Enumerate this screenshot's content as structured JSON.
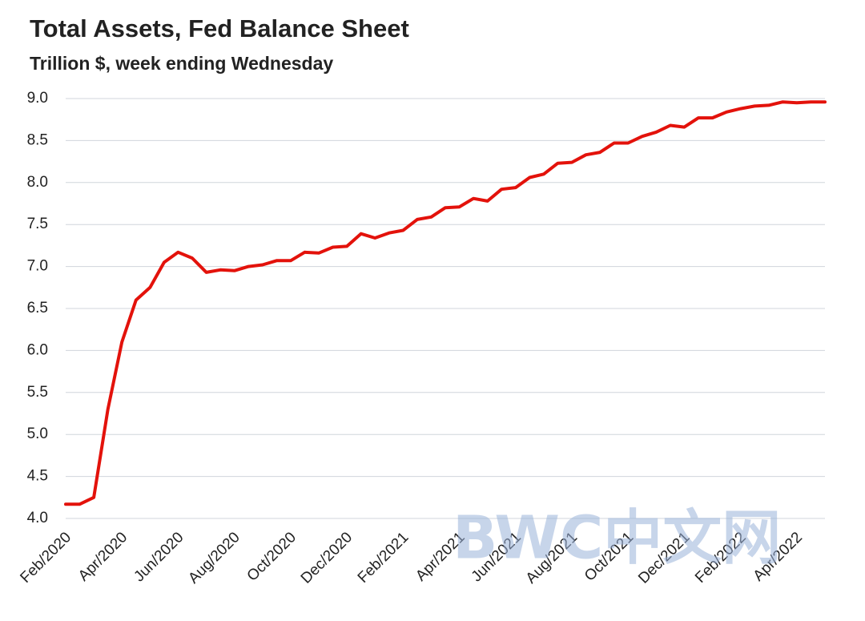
{
  "chart_data": {
    "type": "line",
    "title": "Total Assets, Fed Balance Sheet",
    "subtitle": "Trillion $, week ending Wednesday",
    "watermark": "BWC中文网",
    "categories": [
      "Feb/2020",
      null,
      null,
      null,
      "Apr/2020",
      null,
      null,
      null,
      "Jun/2020",
      null,
      null,
      null,
      "Aug/2020",
      null,
      null,
      null,
      "Oct/2020",
      null,
      null,
      null,
      "Dec/2020",
      null,
      null,
      null,
      "Feb/2021",
      null,
      null,
      null,
      "Apr/2021",
      null,
      null,
      null,
      "Jun/2021",
      null,
      null,
      null,
      "Aug/2021",
      null,
      null,
      null,
      "Oct/2021",
      null,
      null,
      null,
      "Dec/2021",
      null,
      null,
      null,
      "Feb/2022",
      null,
      null,
      null,
      "Apr/2022",
      null,
      null
    ],
    "values": [
      4.17,
      4.17,
      4.25,
      5.3,
      6.1,
      6.6,
      6.75,
      7.05,
      7.17,
      7.1,
      6.93,
      6.96,
      6.95,
      7.0,
      7.02,
      7.07,
      7.07,
      7.17,
      7.16,
      7.23,
      7.24,
      7.39,
      7.34,
      7.4,
      7.43,
      7.56,
      7.59,
      7.7,
      7.71,
      7.81,
      7.78,
      7.92,
      7.94,
      8.06,
      8.1,
      8.23,
      8.24,
      8.33,
      8.36,
      8.47,
      8.47,
      8.55,
      8.6,
      8.68,
      8.66,
      8.77,
      8.77,
      8.84,
      8.88,
      8.91,
      8.92,
      8.96,
      8.95,
      8.96,
      8.96
    ],
    "color": "#e3120b",
    "ylim": [
      4,
      9
    ],
    "yticks": [
      {
        "value": 4,
        "label": "4.0"
      },
      {
        "value": 4.5,
        "label": "4.5"
      },
      {
        "value": 5,
        "label": "5.0"
      },
      {
        "value": 5.5,
        "label": "5.5"
      },
      {
        "value": 6,
        "label": "6.0"
      },
      {
        "value": 6.5,
        "label": "6.5"
      },
      {
        "value": 7,
        "label": "7.0"
      },
      {
        "value": 7.5,
        "label": "7.5"
      },
      {
        "value": 8,
        "label": "8.0"
      },
      {
        "value": 8.5,
        "label": "8.5"
      },
      {
        "value": 9,
        "label": "9.0"
      }
    ],
    "grid": true
  }
}
